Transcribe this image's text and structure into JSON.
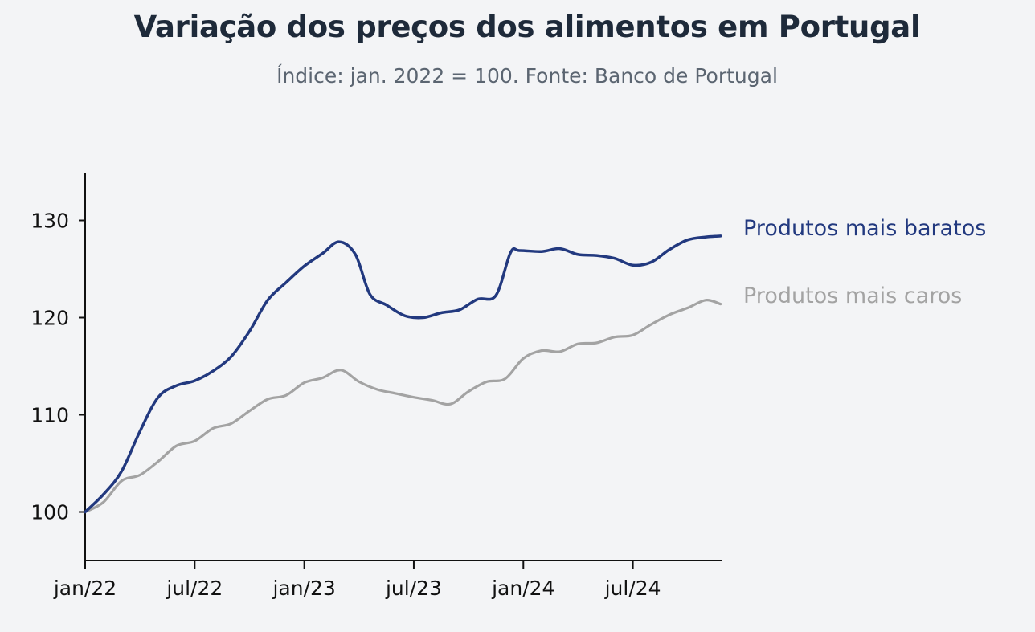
{
  "chart_data": {
    "type": "line",
    "title": "Variação dos preços dos alimentos em Portugal",
    "subtitle": "Índice: jan. 2022 = 100. Fonte: Banco de Portugal",
    "xlabel": "",
    "ylabel": "",
    "ylim": [
      95,
      135
    ],
    "yticks": [
      100,
      110,
      120,
      130
    ],
    "xticks": [
      {
        "label": "jan/22",
        "t": 0
      },
      {
        "label": "jul/22",
        "t": 6
      },
      {
        "label": "jan/23",
        "t": 12
      },
      {
        "label": "jul/23",
        "t": 18
      },
      {
        "label": "jan/24",
        "t": 24
      },
      {
        "label": "jul/24",
        "t": 30
      }
    ],
    "xlim": [
      0,
      35
    ],
    "grid": false,
    "legend": "right, inline at line ends",
    "series": [
      {
        "name": "Produtos mais baratos",
        "color": "#22397f",
        "t": [
          0,
          1,
          2,
          3,
          4,
          5,
          6,
          7,
          8,
          9,
          10,
          11,
          12,
          13,
          13.9,
          14.8,
          15.6,
          16.5,
          17.5,
          18.5,
          19.5,
          20.5,
          21.5,
          22.5,
          23.3,
          23.8,
          25,
          26,
          27,
          28,
          29,
          30,
          31,
          32,
          33,
          34,
          34.8
        ],
        "values": [
          100.0,
          101.8,
          104.2,
          108.3,
          111.8,
          113.0,
          113.5,
          114.5,
          116.0,
          118.6,
          121.8,
          123.6,
          125.3,
          126.6,
          127.8,
          126.5,
          122.4,
          121.3,
          120.2,
          120.0,
          120.5,
          120.8,
          121.9,
          122.3,
          126.7,
          126.9,
          126.8,
          127.1,
          126.5,
          126.4,
          126.1,
          125.4,
          125.7,
          127.0,
          128.0,
          128.3,
          128.4
        ]
      },
      {
        "name": "Produtos mais caros",
        "color": "#a3a3a3",
        "t": [
          0,
          1,
          2,
          3,
          4,
          5,
          6,
          7,
          8,
          9,
          10,
          11,
          12,
          13,
          14,
          15,
          16,
          17,
          18,
          19,
          20,
          21,
          22,
          23,
          24,
          25,
          26,
          27,
          28,
          29,
          30,
          31,
          32,
          33,
          34,
          34.8
        ],
        "values": [
          100.0,
          101.0,
          103.2,
          103.8,
          105.2,
          106.8,
          107.3,
          108.6,
          109.1,
          110.4,
          111.6,
          112.0,
          113.3,
          113.8,
          114.6,
          113.4,
          112.6,
          112.2,
          111.8,
          111.5,
          111.1,
          112.4,
          113.4,
          113.7,
          115.8,
          116.6,
          116.5,
          117.3,
          117.4,
          118.0,
          118.2,
          119.3,
          120.3,
          121.0,
          121.8,
          121.4
        ]
      }
    ]
  }
}
